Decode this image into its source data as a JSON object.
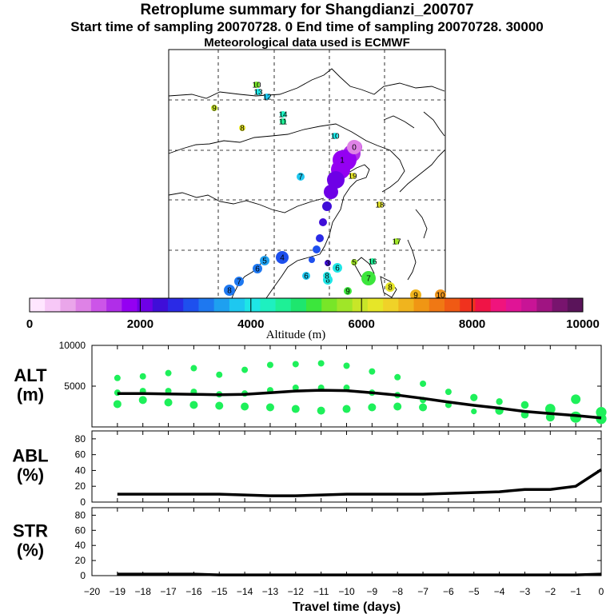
{
  "titles": {
    "line1": "Retroplume summary for Shangdianzi_200707",
    "line2": "Start time of sampling 20070728.    0    End time of sampling 20070728. 30000",
    "line3": "Meteorological data used is ECMWF"
  },
  "colorbar": {
    "tick_labels": [
      "0",
      "2000",
      "4000",
      "6000",
      "8000",
      "10000"
    ],
    "title": "Altitude (m)",
    "colors": [
      "#ffe6ff",
      "#f7c8f7",
      "#eaa6ea",
      "#de82e6",
      "#cc55e8",
      "#b02ee8",
      "#9400f2",
      "#6e00e6",
      "#3f0ed8",
      "#2a2ae6",
      "#1e50ee",
      "#1e78f0",
      "#1ea0f0",
      "#1ec8f0",
      "#1ee6e6",
      "#1ef0c0",
      "#1ef096",
      "#1ee66e",
      "#3ce63c",
      "#78e628",
      "#a0e628",
      "#c8e628",
      "#e6e628",
      "#f0d228",
      "#f0b41e",
      "#f09614",
      "#f07814",
      "#f05a14",
      "#f0321e",
      "#f01446",
      "#f0147d",
      "#e01496",
      "#c81496",
      "#a01482",
      "#78146e",
      "#5a145a"
    ]
  },
  "map": {
    "markers": [
      {
        "label": "10",
        "color": "#78e628"
      },
      {
        "label": "13",
        "color": "#1ee6e6"
      },
      {
        "label": "12",
        "color": "#1ec8f0"
      },
      {
        "label": "9",
        "color": "#c8e628"
      },
      {
        "label": "8",
        "color": "#e6e628"
      },
      {
        "label": "14",
        "color": "#1ef0c0"
      },
      {
        "label": "11",
        "color": "#1ef096"
      },
      {
        "label": "10",
        "color": "#1ee6e6"
      },
      {
        "label": "0",
        "color": "#de82e6"
      },
      {
        "label": "1",
        "color": "#9400f2"
      },
      {
        "label": "7",
        "color": "#1ec8f0"
      },
      {
        "label": "19",
        "color": "#e6e628"
      },
      {
        "label": "18",
        "color": "#e6e628"
      },
      {
        "label": "17",
        "color": "#a0e628"
      },
      {
        "label": "16",
        "color": "#1ef096"
      },
      {
        "label": "4",
        "color": "#1e50ee"
      },
      {
        "label": "3",
        "color": "#3f0ed8"
      },
      {
        "label": "6",
        "color": "#1ee6e6"
      },
      {
        "label": "5",
        "color": "#a0e628"
      },
      {
        "label": "8",
        "color": "#1ee6e6"
      },
      {
        "label": "9",
        "color": "#3ce63c"
      },
      {
        "label": "7",
        "color": "#3ce63c"
      },
      {
        "label": "8",
        "color": "#e6e628"
      },
      {
        "label": "9",
        "color": "#f0b41e"
      },
      {
        "label": "10",
        "color": "#f0961e"
      },
      {
        "label": "8",
        "color": "#1e78f0"
      },
      {
        "label": "7",
        "color": "#1e78f0"
      },
      {
        "label": "6",
        "color": "#1e78f0"
      },
      {
        "label": "5",
        "color": "#1ea0f0"
      },
      {
        "label": "6",
        "color": "#1ec8f0"
      },
      {
        "label": "8",
        "color": "#1ee6e6"
      }
    ]
  },
  "chart_data": [
    {
      "type": "line",
      "name": "ALT",
      "ylabel": "ALT\n(m)",
      "xlabel": "Travel time (days)",
      "xlim": [
        -20,
        0
      ],
      "ylim": [
        0,
        10000
      ],
      "yticks": [
        5000,
        10000
      ],
      "x": [
        -19,
        -18,
        -17,
        -16,
        -15,
        -14,
        -13,
        -12,
        -11,
        -10,
        -9,
        -8,
        -7,
        -6,
        -5,
        -4,
        -3,
        -2,
        -1,
        0
      ],
      "median": [
        4100,
        4100,
        4050,
        4000,
        3950,
        4000,
        4200,
        4400,
        4500,
        4450,
        4200,
        3900,
        3500,
        3050,
        2650,
        2300,
        1900,
        1650,
        1400,
        1100
      ],
      "point_color": "#1ef05a",
      "points": [
        [
          -19,
          6000
        ],
        [
          -19,
          4200
        ],
        [
          -19,
          2800
        ],
        [
          -18,
          6200
        ],
        [
          -18,
          4400
        ],
        [
          -18,
          3300
        ],
        [
          -17,
          6600
        ],
        [
          -17,
          4400
        ],
        [
          -17,
          3000
        ],
        [
          -16,
          7200
        ],
        [
          -16,
          4300
        ],
        [
          -16,
          2700
        ],
        [
          -15,
          6400
        ],
        [
          -15,
          4000
        ],
        [
          -15,
          2600
        ],
        [
          -14,
          7000
        ],
        [
          -14,
          4100
        ],
        [
          -14,
          2500
        ],
        [
          -13,
          7600
        ],
        [
          -13,
          4500
        ],
        [
          -13,
          2400
        ],
        [
          -12,
          7700
        ],
        [
          -12,
          4800
        ],
        [
          -12,
          2200
        ],
        [
          -11,
          7800
        ],
        [
          -11,
          4800
        ],
        [
          -11,
          2000
        ],
        [
          -10,
          7500
        ],
        [
          -10,
          4800
        ],
        [
          -10,
          2200
        ],
        [
          -9,
          6800
        ],
        [
          -9,
          4200
        ],
        [
          -9,
          2400
        ],
        [
          -8,
          6100
        ],
        [
          -8,
          3900
        ],
        [
          -8,
          2500
        ],
        [
          -7,
          5300
        ],
        [
          -7,
          3300
        ],
        [
          -7,
          2400
        ],
        [
          -6,
          4300
        ],
        [
          -6,
          2700
        ],
        [
          -5,
          3600
        ],
        [
          -5,
          1900
        ],
        [
          -4,
          3100
        ],
        [
          -4,
          2000
        ],
        [
          -3,
          2700
        ],
        [
          -3,
          1500
        ],
        [
          -2,
          2200
        ],
        [
          -2,
          1200
        ],
        [
          -1,
          3400
        ],
        [
          -1,
          1200
        ],
        [
          0,
          1800
        ],
        [
          0,
          1000
        ]
      ]
    },
    {
      "type": "line",
      "name": "ABL",
      "ylabel": "ABL\n(%)",
      "xlim": [
        -20,
        0
      ],
      "ylim": [
        0,
        90
      ],
      "yticks": [
        0,
        20,
        40,
        60,
        80
      ],
      "x": [
        -19,
        -18,
        -17,
        -16,
        -15,
        -14,
        -13,
        -12,
        -11,
        -10,
        -9,
        -8,
        -7,
        -6,
        -5,
        -4,
        -3,
        -2,
        -1,
        0
      ],
      "values": [
        10,
        10,
        10,
        10,
        10,
        9,
        8,
        8,
        9,
        10,
        10,
        10,
        10,
        11,
        12,
        13,
        16,
        16,
        20,
        41
      ]
    },
    {
      "type": "line",
      "name": "STR",
      "ylabel": "STR\n(%)",
      "xlabel": "Travel time (days)",
      "xlim": [
        -20,
        0
      ],
      "ylim": [
        0,
        90
      ],
      "yticks": [
        0,
        20,
        40,
        60,
        80
      ],
      "xticks": [
        -20,
        -19,
        -18,
        -17,
        -16,
        -15,
        -14,
        -13,
        -12,
        -11,
        -10,
        -9,
        -8,
        -7,
        -6,
        -5,
        -4,
        -3,
        -2,
        -1,
        0
      ],
      "xtick_labels": [
        "−20",
        "−19",
        "−18",
        "−17",
        "−16",
        "−15",
        "−14",
        "−13",
        "−12",
        "−11",
        "−10",
        "−9",
        "−8",
        "−7",
        "−6",
        "−5",
        "−4",
        "−3",
        "−2",
        "−1",
        "0"
      ],
      "x": [
        -19,
        -18,
        -17,
        -16,
        -15,
        -14,
        -13,
        -12,
        -11,
        -10,
        -9,
        -8,
        -7,
        -6,
        -5,
        -4,
        -3,
        -2,
        -1,
        0
      ],
      "values": [
        2,
        2,
        2,
        2,
        1,
        1,
        1,
        1,
        1,
        1,
        1,
        1,
        1,
        1,
        1,
        1,
        1,
        1,
        1,
        2
      ]
    }
  ]
}
